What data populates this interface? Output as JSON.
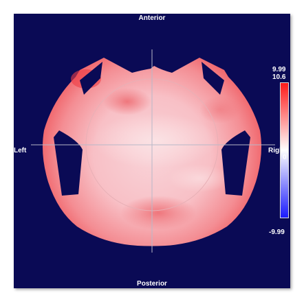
{
  "orientation": {
    "top": "Anterior",
    "bottom": "Posterior",
    "left": "Left",
    "right": "Right"
  },
  "colorbar": {
    "max": "9.99",
    "peak": "10.6",
    "zero": "0",
    "min": "-9.99",
    "colors": {
      "positive": "#ff1a1a",
      "neutral": "#ffffff",
      "negative": "#1a1aff"
    }
  },
  "background_color": "#0a0a55"
}
